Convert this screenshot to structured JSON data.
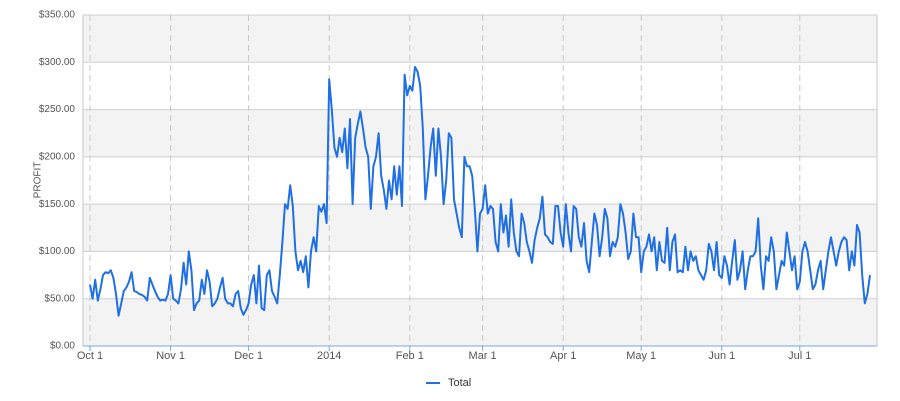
{
  "chart_data": {
    "type": "line",
    "y_label": "PROFIT",
    "categories": [
      "Oct 1",
      null,
      null,
      null,
      null,
      null,
      null,
      null,
      null,
      null,
      null,
      null,
      null,
      null,
      null,
      null,
      null,
      null,
      null,
      null,
      null,
      null,
      null,
      null,
      null,
      null,
      null,
      null,
      null,
      null,
      null,
      "Nov 1",
      null,
      null,
      null,
      null,
      null,
      null,
      null,
      null,
      null,
      null,
      null,
      null,
      null,
      null,
      null,
      null,
      null,
      null,
      null,
      null,
      null,
      null,
      null,
      null,
      null,
      null,
      null,
      null,
      null,
      "Dec 1",
      null,
      null,
      null,
      null,
      null,
      null,
      null,
      null,
      null,
      null,
      null,
      null,
      null,
      null,
      null,
      null,
      null,
      null,
      null,
      null,
      null,
      null,
      null,
      null,
      null,
      null,
      null,
      null,
      null,
      null,
      "2014",
      null,
      null,
      null,
      null,
      null,
      null,
      null,
      null,
      null,
      null,
      null,
      null,
      null,
      null,
      null,
      null,
      null,
      null,
      null,
      null,
      null,
      null,
      null,
      null,
      null,
      null,
      null,
      null,
      null,
      null,
      "Feb 1",
      null,
      null,
      null,
      null,
      null,
      null,
      null,
      null,
      null,
      null,
      null,
      null,
      null,
      null,
      null,
      null,
      null,
      null,
      null,
      null,
      null,
      null,
      null,
      null,
      null,
      null,
      null,
      "Mar 1",
      null,
      null,
      null,
      null,
      null,
      null,
      null,
      null,
      null,
      null,
      null,
      null,
      null,
      null,
      null,
      null,
      null,
      null,
      null,
      null,
      null,
      null,
      null,
      null,
      null,
      null,
      null,
      null,
      null,
      null,
      "Apr 1",
      null,
      null,
      null,
      null,
      null,
      null,
      null,
      null,
      null,
      null,
      null,
      null,
      null,
      null,
      null,
      null,
      null,
      null,
      null,
      null,
      null,
      null,
      null,
      null,
      null,
      null,
      null,
      null,
      null,
      "May 1",
      null,
      null,
      null,
      null,
      null,
      null,
      null,
      null,
      null,
      null,
      null,
      null,
      null,
      null,
      null,
      null,
      null,
      null,
      null,
      null,
      null,
      null,
      null,
      null,
      null,
      null,
      null,
      null,
      null,
      null,
      "Jun 1",
      null,
      null,
      null,
      null,
      null,
      null,
      null,
      null,
      null,
      null,
      null,
      null,
      null,
      null,
      null,
      null,
      null,
      null,
      null,
      null,
      null,
      null,
      null,
      null,
      null,
      null,
      null,
      null,
      null,
      "Jul 1",
      null,
      null,
      null,
      null,
      null,
      null,
      null,
      null,
      null,
      null,
      null,
      null,
      null,
      null,
      null,
      null,
      null,
      null,
      null,
      null,
      null,
      null,
      null,
      null,
      null,
      null,
      null
    ],
    "series": [
      {
        "name": "Total",
        "color": "#1f6fe5",
        "values": [
          65,
          50,
          70,
          48,
          60,
          75,
          78,
          77,
          80,
          72,
          55,
          32,
          45,
          58,
          62,
          68,
          78,
          58,
          57,
          55,
          54,
          52,
          48,
          72,
          65,
          58,
          52,
          48,
          49,
          48,
          55,
          75,
          50,
          48,
          45,
          60,
          88,
          65,
          100,
          80,
          38,
          45,
          48,
          70,
          55,
          80,
          68,
          42,
          45,
          50,
          62,
          72,
          50,
          45,
          45,
          42,
          55,
          58,
          40,
          33,
          38,
          45,
          65,
          75,
          45,
          85,
          40,
          38,
          75,
          80,
          58,
          52,
          45,
          75,
          110,
          150,
          145,
          170,
          148,
          100,
          80,
          90,
          78,
          95,
          62,
          100,
          115,
          100,
          148,
          142,
          150,
          130,
          282,
          250,
          210,
          200,
          220,
          205,
          230,
          188,
          240,
          150,
          220,
          235,
          248,
          230,
          210,
          200,
          145,
          190,
          200,
          225,
          180,
          165,
          145,
          175,
          155,
          190,
          160,
          190,
          148,
          287,
          265,
          275,
          270,
          295,
          290,
          275,
          230,
          155,
          180,
          210,
          230,
          180,
          230,
          200,
          150,
          175,
          225,
          220,
          155,
          140,
          125,
          115,
          200,
          190,
          190,
          180,
          145,
          100,
          140,
          145,
          170,
          140,
          148,
          145,
          110,
          100,
          150,
          120,
          138,
          105,
          155,
          120,
          100,
          95,
          140,
          130,
          110,
          100,
          88,
          112,
          125,
          135,
          158,
          118,
          115,
          110,
          108,
          148,
          148,
          120,
          105,
          150,
          120,
          100,
          148,
          145,
          115,
          105,
          130,
          90,
          78,
          110,
          140,
          128,
          95,
          115,
          145,
          135,
          95,
          110,
          105,
          115,
          150,
          140,
          120,
          92,
          100,
          140,
          115,
          115,
          78,
          100,
          105,
          118,
          100,
          115,
          80,
          110,
          90,
          88,
          125,
          80,
          110,
          118,
          78,
          80,
          78,
          105,
          80,
          100,
          90,
          95,
          80,
          75,
          70,
          80,
          108,
          100,
          80,
          110,
          75,
          72,
          95,
          85,
          65,
          90,
          112,
          70,
          80,
          100,
          60,
          80,
          95,
          95,
          100,
          135,
          85,
          60,
          95,
          90,
          115,
          100,
          60,
          75,
          90,
          85,
          120,
          100,
          80,
          95,
          60,
          68,
          100,
          110,
          100,
          80,
          60,
          65,
          80,
          90,
          60,
          80,
          100,
          115,
          100,
          85,
          100,
          110,
          115,
          112,
          80,
          100,
          85,
          128,
          120,
          75,
          45,
          55,
          75
        ]
      }
    ],
    "ylim": [
      0,
      350
    ],
    "yticks": [
      {
        "value": 0,
        "label": "$0.00"
      },
      {
        "value": 50,
        "label": "$50.00"
      },
      {
        "value": 100,
        "label": "$100.00"
      },
      {
        "value": 150,
        "label": "$150.00"
      },
      {
        "value": 200,
        "label": "$200.00"
      },
      {
        "value": 250,
        "label": "$250.00"
      },
      {
        "value": 300,
        "label": "$300.00"
      },
      {
        "value": 350,
        "label": "$350.00"
      }
    ],
    "grid": true,
    "legend": "bottom"
  }
}
